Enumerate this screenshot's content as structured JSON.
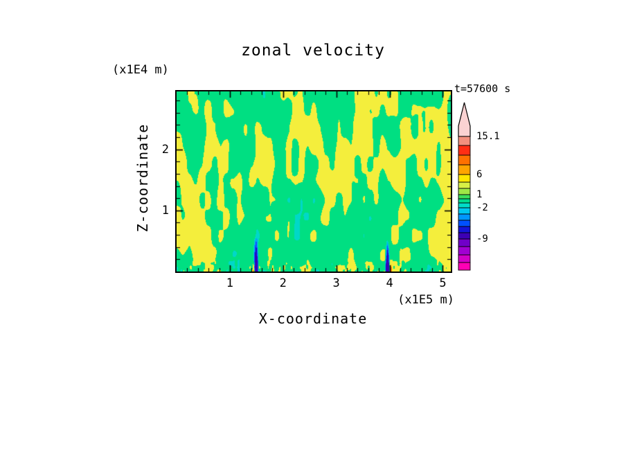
{
  "title": "zonal velocity",
  "time_label": "t=57600 s",
  "axes": {
    "x_label": "X-coordinate",
    "x_units": "(x1E5 m)",
    "y_label": "Z-coordinate",
    "y_units": "(x1E4 m)",
    "x_ticks": [
      {
        "value": 1,
        "label": "1"
      },
      {
        "value": 2,
        "label": "2"
      },
      {
        "value": 3,
        "label": "3"
      },
      {
        "value": 4,
        "label": "4"
      },
      {
        "value": 5,
        "label": "5"
      }
    ],
    "y_ticks": [
      {
        "value": 1,
        "label": "1"
      },
      {
        "value": 2,
        "label": "2"
      }
    ]
  },
  "colorbar": {
    "arrow_color": "#FAD2D2",
    "labels": [
      {
        "text": "15.1",
        "y": 197
      },
      {
        "text": "6",
        "y": 252
      },
      {
        "text": "1",
        "y": 281
      },
      {
        "text": "-2",
        "y": 300
      },
      {
        "text": "-9",
        "y": 345
      }
    ],
    "segments": [
      {
        "color": "#F2907E",
        "h": 13
      },
      {
        "color": "#FF2E14",
        "h": 14
      },
      {
        "color": "#FF7000",
        "h": 14
      },
      {
        "color": "#FFA400",
        "h": 14
      },
      {
        "color": "#FFE600",
        "h": 11
      },
      {
        "color": "#D8F046",
        "h": 9
      },
      {
        "color": "#A0E846",
        "h": 9
      },
      {
        "color": "#3CE05A",
        "h": 6
      },
      {
        "color": "#00DC8C",
        "h": 6
      },
      {
        "color": "#00DCC8",
        "h": 7
      },
      {
        "color": "#00C8F0",
        "h": 9
      },
      {
        "color": "#0096FF",
        "h": 9
      },
      {
        "color": "#0050FF",
        "h": 9
      },
      {
        "color": "#1414D8",
        "h": 9
      },
      {
        "color": "#3C00B4",
        "h": 9
      },
      {
        "color": "#7000C8",
        "h": 11
      },
      {
        "color": "#A000D2",
        "h": 12
      },
      {
        "color": "#D200C8",
        "h": 11
      },
      {
        "color": "#FF00B4",
        "h": 11
      }
    ]
  },
  "chart_data": {
    "type": "heatmap",
    "title": "zonal velocity",
    "xlabel": "X-coordinate",
    "x_units": "(x1E5 m)",
    "ylabel": "Z-coordinate",
    "y_units": "(x1E4 m)",
    "time_annotation": "t=57600 s",
    "x_axis": {
      "min": 0,
      "max": 5.15,
      "major_ticks": [
        1,
        2,
        3,
        4,
        5
      ],
      "minor_step": 0.2
    },
    "y_axis": {
      "min": 0,
      "max": 2.95,
      "major_ticks": [
        1,
        2
      ],
      "minor_step": 0.2
    },
    "colorbar_tick_values": [
      15.1,
      6,
      1,
      -2,
      -9
    ],
    "description": "Turbulent convective zonal-velocity field: mottled filaments mostly green (values -2..1) and yellow (1..6); narrow downdraft plumes (dark blue, below -9) with cyan fringes near the bottom boundary at x~1.5 and x~4.0 (x1E5 m), adjacent orange/red updraft spots (above 6), and cyan/teal streaks along the lower boundary.",
    "value_palette": [
      {
        "min": 9,
        "color": "#FF3214"
      },
      {
        "min": 6,
        "color": "#FF9C00"
      },
      {
        "min": 1,
        "color": "#F4EE3C"
      },
      {
        "min": -2,
        "color": "#00DF82"
      },
      {
        "min": -3.2,
        "color": "#00D8C8"
      },
      {
        "min": -4.6,
        "color": "#00AAF0"
      },
      {
        "min": -6.5,
        "color": "#1450FF"
      },
      {
        "min": -9,
        "color": "#1A10C8"
      },
      {
        "min": -999,
        "color": "#3C00B4"
      }
    ],
    "procedural": {
      "seed": 1337,
      "bias": 0.8,
      "octaves": [
        {
          "fx": 44,
          "fy": 10,
          "amp": 3.6,
          "ox": 0,
          "oy": 0
        },
        {
          "fx": 18,
          "fy": 5,
          "amp": 3.0,
          "ox": 31,
          "oy": 11
        },
        {
          "fx": 7,
          "fy": 2.5,
          "amp": 2.2,
          "ox": 5,
          "oy": 7
        }
      ],
      "column_wave": {
        "center": 1.5,
        "wavelength": 2.57,
        "amp": 0.7
      },
      "bottom_layer": {
        "start": 0.93,
        "fx": 120,
        "fy": 40,
        "amp": 6
      },
      "plumes": [
        {
          "x": 0.289,
          "w": 0.01,
          "amp": -19,
          "depth": 0.2
        },
        {
          "x": 0.28,
          "w": 0.006,
          "amp": 10,
          "depth": 0.06
        },
        {
          "x": 0.768,
          "w": 0.01,
          "amp": -19,
          "depth": 0.2
        },
        {
          "x": 0.78,
          "w": 0.007,
          "amp": 12,
          "depth": 0.07
        }
      ]
    }
  }
}
